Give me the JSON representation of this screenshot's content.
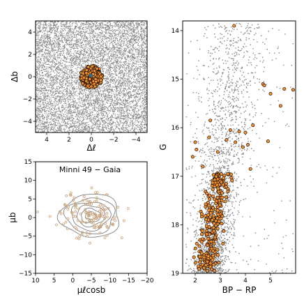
{
  "chart_data": [
    {
      "type": "scatter",
      "panel": "spatial",
      "xlabel": "Δℓ",
      "ylabel": "Δb",
      "xlim": [
        5,
        -5
      ],
      "ylim": [
        -5,
        5
      ],
      "xticks": [
        4,
        2,
        0,
        -2,
        -4
      ],
      "xtick_labels": [
        "4",
        "2",
        "0",
        "−2",
        "−4"
      ],
      "yticks": [
        4,
        2,
        0,
        -2,
        -4
      ],
      "ytick_labels": [
        "4",
        "2",
        "0",
        "−2",
        "−4"
      ],
      "field_stars": {
        "color": "#8c8c8c",
        "count": 9000,
        "distribution": "uniform over full window"
      },
      "members": {
        "color": "#f28e2b",
        "edge": "#000000",
        "center": [
          0.0,
          0.0
        ],
        "radius": 1.0,
        "count": 250
      },
      "center_marker": {
        "color": "#1f77b4",
        "x": 0.05,
        "y": 0.1
      }
    },
    {
      "type": "scatter",
      "panel": "proper-motion",
      "title": "Minni 49  −  Gaia",
      "xlabel": "μℓcosb",
      "ylabel": "μb",
      "xlim": [
        10,
        -20
      ],
      "ylim": [
        -15,
        15
      ],
      "xticks": [
        10,
        5,
        0,
        -5,
        -10,
        -15,
        -20
      ],
      "xtick_labels": [
        "10",
        "5",
        "0",
        "−5",
        "−10",
        "−15",
        "−20"
      ],
      "yticks": [
        15,
        10,
        5,
        0,
        -5,
        -10,
        -15
      ],
      "ytick_labels": [
        "15",
        "10",
        "5",
        "0",
        "−5",
        "−10",
        "−15"
      ],
      "members": {
        "color": "#c8a27a",
        "center": [
          -4.8,
          0.5
        ],
        "spread": [
          4.0,
          3.0
        ],
        "count": 130
      },
      "contours": {
        "color": "#808080",
        "center": [
          -4.8,
          0.5
        ],
        "rx": [
          1.4,
          2.6,
          3.8,
          5.2,
          6.6,
          8.0
        ],
        "ry": [
          1.0,
          1.9,
          2.8,
          3.8,
          4.8,
          5.8
        ]
      }
    },
    {
      "type": "scatter",
      "panel": "cmd",
      "xlabel": "BP − RP",
      "ylabel": "G",
      "xlim": [
        1.5,
        6.0
      ],
      "ylim": [
        19.0,
        13.8
      ],
      "xticks": [
        2,
        3,
        4,
        5
      ],
      "xtick_labels": [
        "2",
        "3",
        "4",
        "5"
      ],
      "yticks": [
        14,
        15,
        16,
        17,
        18,
        19
      ],
      "ytick_labels": [
        "14",
        "15",
        "16",
        "17",
        "18",
        "19"
      ],
      "field_stars": {
        "color": "#8c8c8c",
        "count": 9000
      },
      "members": {
        "color": "#f28e2b",
        "edge": "#000000",
        "count": 260,
        "bright_points": [
          {
            "x": 3.55,
            "y": 13.9
          },
          {
            "x": 4.7,
            "y": 15.1
          },
          {
            "x": 4.75,
            "y": 15.13
          },
          {
            "x": 5.55,
            "y": 15.2
          },
          {
            "x": 5.9,
            "y": 15.22
          },
          {
            "x": 5.0,
            "y": 15.3
          },
          {
            "x": 5.4,
            "y": 15.55
          },
          {
            "x": 2.6,
            "y": 15.85
          },
          {
            "x": 4.3,
            "y": 15.95
          },
          {
            "x": 3.4,
            "y": 16.05
          },
          {
            "x": 3.75,
            "y": 16.08
          },
          {
            "x": 4.0,
            "y": 16.1
          },
          {
            "x": 2.55,
            "y": 16.2
          },
          {
            "x": 3.25,
            "y": 16.25
          },
          {
            "x": 2.0,
            "y": 16.3
          },
          {
            "x": 4.1,
            "y": 16.35
          },
          {
            "x": 2.05,
            "y": 16.45
          },
          {
            "x": 4.9,
            "y": 16.28
          },
          {
            "x": 2.9,
            "y": 16.5
          },
          {
            "x": 1.9,
            "y": 16.6
          },
          {
            "x": 4.2,
            "y": 16.85
          },
          {
            "x": 2.3,
            "y": 16.8
          },
          {
            "x": 3.9,
            "y": 16.4
          },
          {
            "x": 3.6,
            "y": 16.3
          }
        ]
      }
    }
  ]
}
